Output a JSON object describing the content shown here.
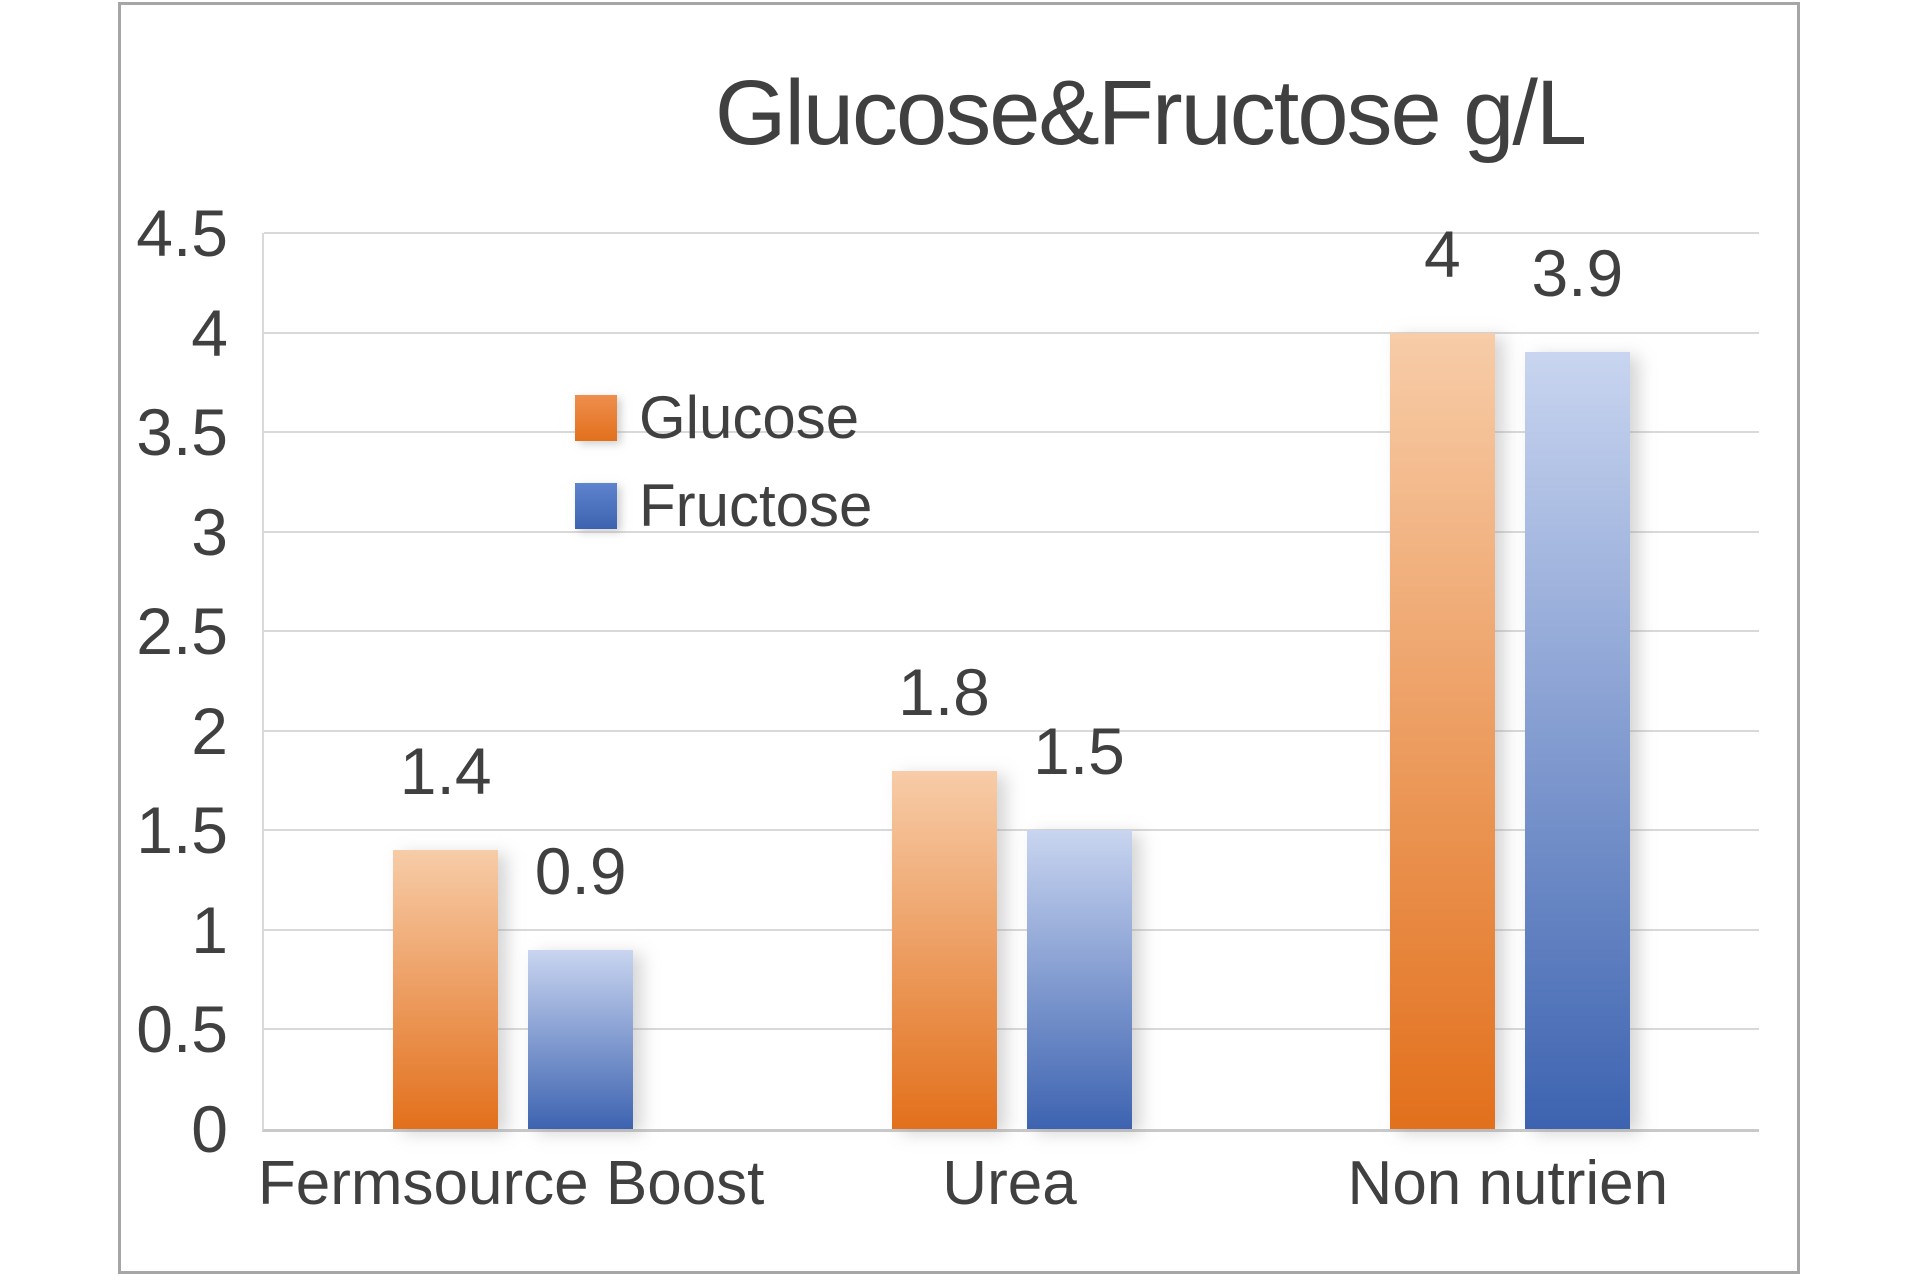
{
  "chart_data": {
    "type": "bar",
    "title": "Glucose&Fructose g/L",
    "categories": [
      "Fermsource Boost",
      "Urea",
      "Non nutrien"
    ],
    "series": [
      {
        "name": "Glucose",
        "values": [
          1.4,
          1.8,
          4
        ],
        "labels": [
          "1.4",
          "1.8",
          "4"
        ],
        "color": "#e2701c",
        "color_light": "#f7cca8",
        "swatch_top": "#ee8f4e"
      },
      {
        "name": "Fructose",
        "values": [
          0.9,
          1.5,
          3.9
        ],
        "labels": [
          "0.9",
          "1.5",
          "3.9"
        ],
        "color": "#3d63b0",
        "color_light": "#c9d5f0",
        "swatch_top": "#5f83cd"
      }
    ],
    "ylim": [
      0,
      4.5
    ],
    "yticks": [
      0,
      0.5,
      1,
      1.5,
      2,
      2.5,
      3,
      3.5,
      4,
      4.5
    ],
    "ytick_labels": [
      "0",
      "0.5",
      "1",
      "1.5",
      "2",
      "2.5",
      "3",
      "3.5",
      "4",
      "4.5"
    ],
    "grid": "horizontal gridlines every 0.5",
    "legend_position": "inside plot, upper-left",
    "title_color": "#404040",
    "text_color": "#404040",
    "gridline_color": "#d9d9d9",
    "frame_border_color": "#a6a6a6"
  }
}
